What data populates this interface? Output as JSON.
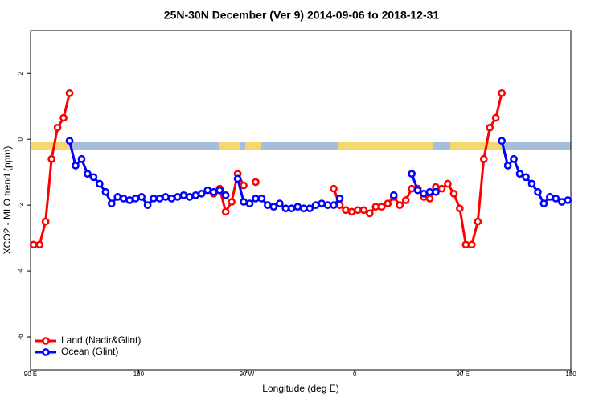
{
  "chart_data": {
    "type": "line",
    "title": "25N-30N December (Ver 9)   2014-09-06 to 2018-12-31",
    "xlabel": "Longitude (deg E)",
    "ylabel": "XCO2 - MLO trend (ppm)",
    "x": [
      92.5,
      97.5,
      102.5,
      107.5,
      112.5,
      117.5,
      122.5,
      127.5,
      132.5,
      137.5,
      142.5,
      147.5,
      152.5,
      157.5,
      162.5,
      167.5,
      172.5,
      177.5,
      182.5,
      187.5,
      192.5,
      197.5,
      202.5,
      207.5,
      212.5,
      217.5,
      222.5,
      227.5,
      232.5,
      237.5,
      242.5,
      247.5,
      252.5,
      257.5,
      262.5,
      267.5,
      272.5,
      277.5,
      282.5,
      287.5,
      292.5,
      297.5,
      302.5,
      307.5,
      312.5,
      317.5,
      322.5,
      327.5,
      332.5,
      337.5,
      342.5,
      347.5,
      352.5,
      357.5,
      362.5,
      367.5,
      372.5,
      377.5,
      382.5,
      387.5,
      392.5,
      397.5,
      402.5,
      407.5,
      412.5,
      417.5,
      422.5,
      427.5,
      432.5,
      437.5,
      442.5,
      447.5,
      452.5,
      457.5,
      462.5,
      467.5,
      472.5,
      477.5,
      482.5,
      487.5,
      492.5,
      497.5,
      502.5,
      507.5,
      512.5,
      517.5,
      522.5,
      527.5,
      532.5,
      537.5
    ],
    "series": [
      {
        "name": "Land (Nadir&Glint)",
        "color": "#ff0000",
        "values": [
          -3.2,
          -3.2,
          -2.5,
          -0.6,
          0.35,
          0.65,
          1.4,
          null,
          null,
          null,
          null,
          null,
          null,
          null,
          null,
          null,
          null,
          null,
          null,
          null,
          null,
          null,
          null,
          null,
          null,
          null,
          null,
          null,
          null,
          null,
          -1.65,
          -1.5,
          -2.2,
          -1.9,
          -1.05,
          -1.4,
          null,
          -1.3,
          null,
          null,
          null,
          null,
          null,
          null,
          null,
          null,
          null,
          null,
          null,
          null,
          -1.5,
          -2.0,
          -2.15,
          -2.2,
          -2.15,
          -2.15,
          -2.25,
          -2.05,
          -2.05,
          -1.95,
          -1.75,
          -2.0,
          -1.85,
          -1.5,
          -1.5,
          -1.75,
          -1.8,
          -1.45,
          -1.5,
          -1.35,
          -1.65,
          -2.1,
          -3.2,
          -3.2,
          -2.5,
          -0.6,
          0.35,
          0.65,
          1.4,
          null,
          null,
          null,
          null,
          null,
          null,
          null,
          null,
          null,
          null,
          null
        ]
      },
      {
        "name": "Ocean (Glint)",
        "color": "#0000ff",
        "values": [
          null,
          null,
          null,
          null,
          null,
          null,
          -0.05,
          -0.8,
          -0.6,
          -1.05,
          -1.15,
          -1.35,
          -1.6,
          -1.95,
          -1.75,
          -1.8,
          -1.85,
          -1.8,
          -1.75,
          -2.0,
          -1.8,
          -1.8,
          -1.75,
          -1.8,
          -1.75,
          -1.7,
          -1.75,
          -1.7,
          -1.65,
          -1.55,
          -1.6,
          -1.55,
          -1.7,
          null,
          -1.2,
          -1.9,
          -1.95,
          -1.8,
          -1.8,
          -2.0,
          -2.05,
          -1.95,
          -2.1,
          -2.1,
          -2.05,
          -2.1,
          -2.1,
          -2.0,
          -1.95,
          -2.0,
          -2.0,
          -1.8,
          null,
          null,
          null,
          null,
          null,
          null,
          null,
          null,
          -1.7,
          null,
          null,
          -1.05,
          -1.55,
          -1.65,
          -1.6,
          -1.6,
          null,
          null,
          null,
          null,
          null,
          null,
          null,
          null,
          null,
          null,
          -0.05,
          -0.8,
          -0.6,
          -1.05,
          -1.15,
          -1.35,
          -1.6,
          -1.95,
          -1.75,
          -1.8,
          -1.9,
          -1.85
        ]
      }
    ],
    "xlim": [
      90,
      540
    ],
    "xticks": [
      {
        "value": 90,
        "label": "90 E"
      },
      180,
      {
        "value": 270,
        "label": "90 W"
      },
      {
        "value": 360,
        "label": "0"
      },
      {
        "value": 450,
        "label": "90 E"
      },
      {
        "value": 540,
        "label": "180"
      }
    ],
    "ylim": [
      -7,
      3.3
    ],
    "yticks": [
      -6,
      -4,
      -2,
      0,
      2
    ],
    "legend": "bottom-left"
  }
}
